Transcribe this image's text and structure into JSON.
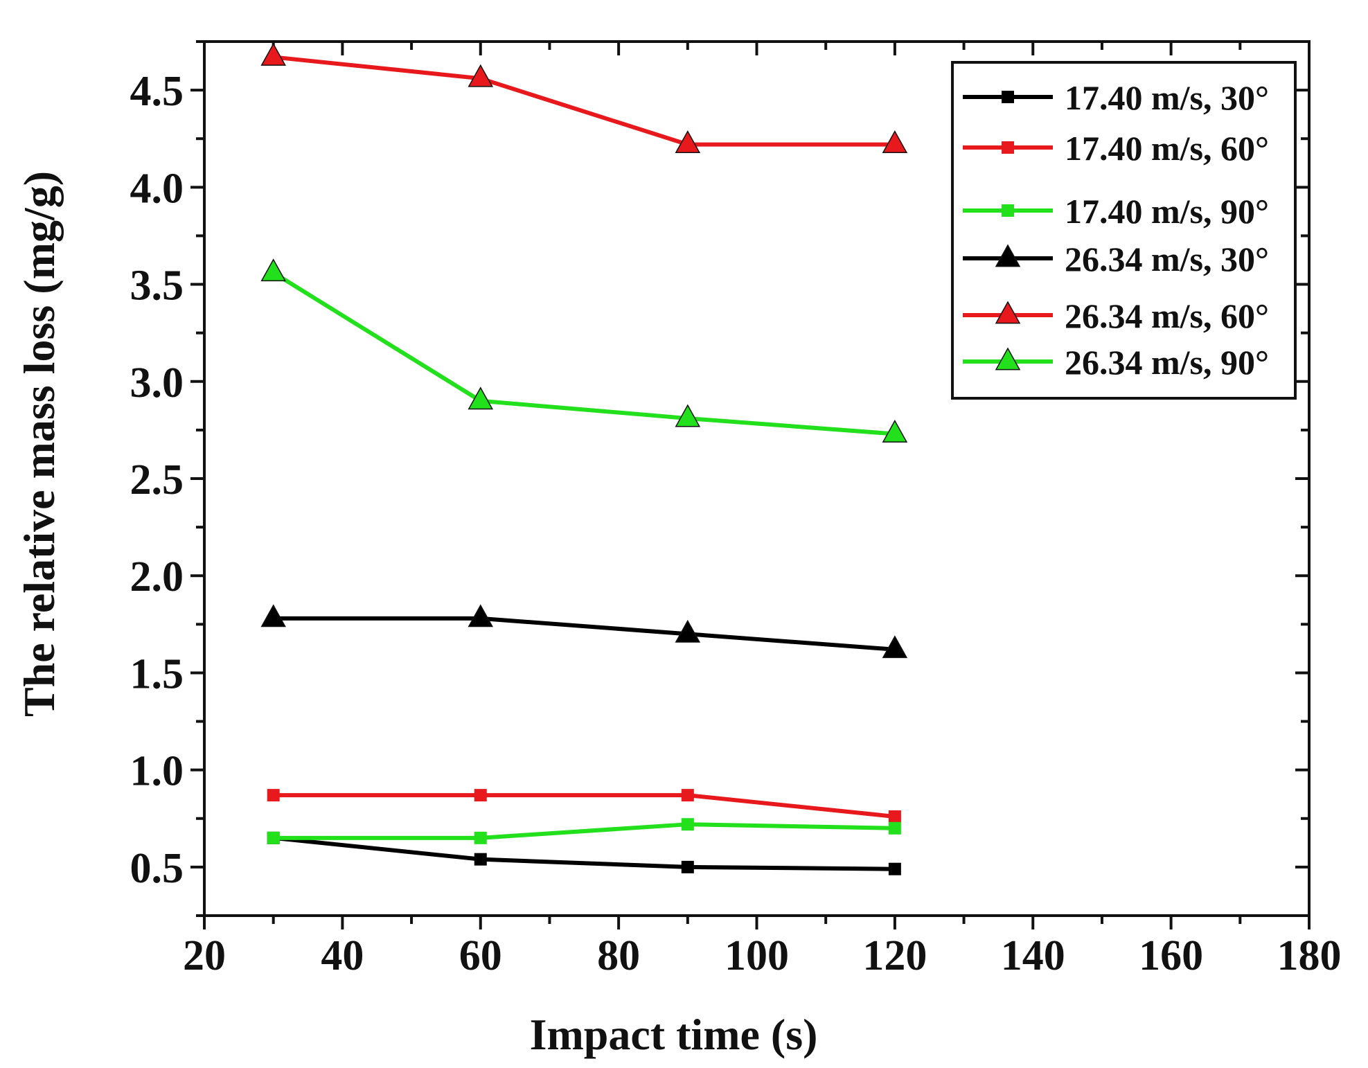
{
  "chart_data": {
    "type": "line",
    "title": "",
    "xlabel": "Impact time (s)",
    "ylabel": "The relative mass loss (mg/g)",
    "xlim": [
      20,
      180
    ],
    "ylim": [
      0.25,
      4.75
    ],
    "xticks": [
      20,
      40,
      60,
      80,
      100,
      120,
      140,
      160,
      180
    ],
    "yticks": [
      0.5,
      1.0,
      1.5,
      2.0,
      2.5,
      3.0,
      3.5,
      4.0,
      4.5
    ],
    "xtick_labels": [
      "20",
      "40",
      "60",
      "80",
      "100",
      "120",
      "140",
      "160",
      "180"
    ],
    "ytick_labels": [
      "0.5",
      "1.0",
      "1.5",
      "2.0",
      "2.5",
      "3.0",
      "3.5",
      "4.0",
      "4.5"
    ],
    "x": [
      30,
      60,
      90,
      120
    ],
    "grid": false,
    "legend_position": "top-right",
    "series": [
      {
        "name": "17.40 m/s, 30°",
        "marker": "square",
        "color": "#000000",
        "values": [
          0.65,
          0.54,
          0.5,
          0.49
        ]
      },
      {
        "name": "17.40 m/s, 60°",
        "marker": "square",
        "color": "#e8191c",
        "values": [
          0.87,
          0.87,
          0.87,
          0.76
        ]
      },
      {
        "name": "17.40 m/s, 90°",
        "marker": "square",
        "color": "#22e01c",
        "values": [
          0.65,
          0.65,
          0.72,
          0.7
        ]
      },
      {
        "name": "26.34 m/s, 30°",
        "marker": "triangle",
        "color": "#000000",
        "values": [
          1.78,
          1.78,
          1.7,
          1.62
        ]
      },
      {
        "name": "26.34 m/s, 60°",
        "marker": "triangle",
        "color": "#e8191c",
        "values": [
          4.67,
          4.56,
          4.22,
          4.22
        ]
      },
      {
        "name": "26.34 m/s, 90°",
        "marker": "triangle",
        "color": "#22e01c",
        "values": [
          3.56,
          2.9,
          2.81,
          2.73
        ]
      }
    ]
  }
}
